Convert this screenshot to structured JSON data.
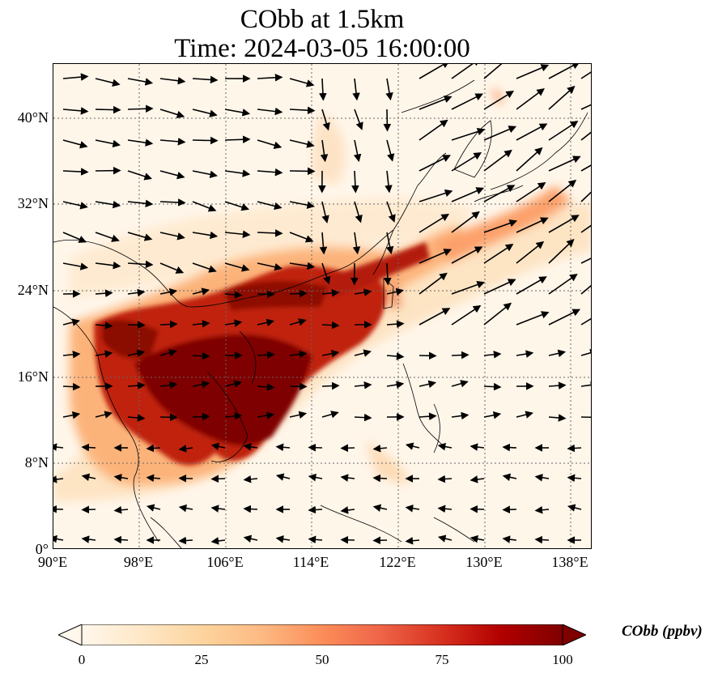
{
  "title": {
    "line1": "CObb at 1.5km",
    "line2": "Time: 2024-03-05 16:00:00"
  },
  "map": {
    "projection": "PlateCarree",
    "lon_range": [
      90,
      140
    ],
    "lat_range": [
      0,
      45
    ],
    "gridlines": "dotted",
    "features": [
      "coastlines",
      "country-borders",
      "wind-vectors",
      "cobb-concentration-field"
    ]
  },
  "axes": {
    "y_ticks": [
      "0°",
      "8°N",
      "16°N",
      "24°N",
      "32°N",
      "40°N"
    ],
    "y_values": [
      0,
      8,
      16,
      24,
      32,
      40
    ],
    "x_ticks": [
      "90°E",
      "98°E",
      "106°E",
      "114°E",
      "122°E",
      "130°E",
      "138°E"
    ],
    "x_values": [
      90,
      98,
      106,
      114,
      122,
      130,
      138
    ]
  },
  "colorbar": {
    "label": "CObb (ppbv)",
    "min": 0,
    "max": 100,
    "extend": "both",
    "ticks": [
      "0",
      "25",
      "50",
      "75",
      "100"
    ],
    "tick_values": [
      0,
      25,
      50,
      75,
      100
    ],
    "colormap": "OrRd",
    "colors": [
      "#fff7ec",
      "#fee8c8",
      "#fdd49e",
      "#fdbb84",
      "#fc8d59",
      "#ef6548",
      "#d7301f",
      "#b30000",
      "#7f0000"
    ]
  }
}
